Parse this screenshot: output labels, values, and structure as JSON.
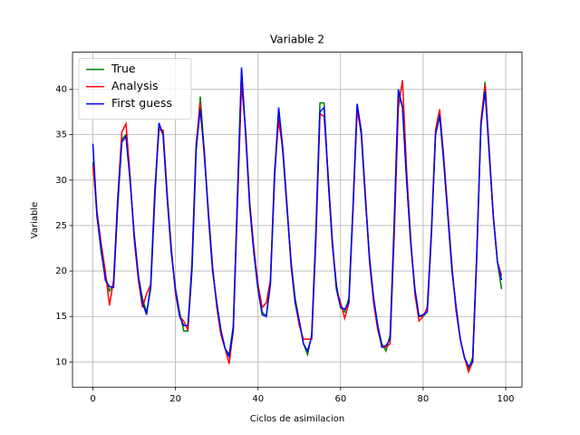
{
  "chart_data": {
    "type": "line",
    "title": "Variable 2",
    "xlabel": "Ciclos de asimilacion",
    "ylabel": "Variable",
    "x": [
      0,
      1,
      2,
      3,
      4,
      5,
      6,
      7,
      8,
      9,
      10,
      11,
      12,
      13,
      14,
      15,
      16,
      17,
      18,
      19,
      20,
      21,
      22,
      23,
      24,
      25,
      26,
      27,
      28,
      29,
      30,
      31,
      32,
      33,
      34,
      35,
      36,
      37,
      38,
      39,
      40,
      41,
      42,
      43,
      44,
      45,
      46,
      47,
      48,
      49,
      50,
      51,
      52,
      53,
      54,
      55,
      56,
      57,
      58,
      59,
      60,
      61,
      62,
      63,
      64,
      65,
      66,
      67,
      68,
      69,
      70,
      71,
      72,
      73,
      74,
      75,
      76,
      77,
      78,
      79,
      80,
      81,
      82,
      83,
      84,
      85,
      86,
      87,
      88,
      89,
      90,
      91,
      92,
      93,
      94,
      95,
      96,
      97,
      98,
      99
    ],
    "series": [
      {
        "name": "True",
        "color": "#008000",
        "values": [
          32,
          26,
          22,
          19.5,
          17.8,
          18.5,
          27,
          34.5,
          35,
          30,
          24,
          19.5,
          17,
          15.5,
          18,
          28,
          36,
          35,
          28,
          22,
          18,
          15.5,
          13.4,
          13.4,
          20,
          33,
          39.2,
          33,
          26,
          20,
          16.5,
          13.5,
          11.5,
          10.8,
          14,
          28,
          42,
          35,
          27,
          22,
          18,
          15.5,
          15,
          19,
          30,
          37.5,
          33,
          27,
          21,
          17,
          14.5,
          12,
          10.8,
          13,
          24,
          38.5,
          38.5,
          30,
          23,
          18.5,
          16,
          15.5,
          17,
          27,
          38,
          35,
          28,
          21.5,
          17,
          14,
          12,
          11.2,
          13,
          25,
          39.5,
          38,
          30,
          23,
          18,
          15,
          15,
          15.5,
          24,
          35,
          37,
          32,
          26,
          20,
          16,
          12.5,
          10.5,
          9.2,
          10.5,
          22,
          36,
          40.8,
          33,
          26,
          21,
          18
        ]
      },
      {
        "name": "Analysis",
        "color": "#ff0000",
        "values": [
          31.7,
          26.5,
          23,
          20,
          16.2,
          19,
          28,
          35.3,
          36.2,
          30.5,
          23.5,
          19,
          16,
          17.5,
          18.5,
          29,
          35.5,
          35.5,
          28.5,
          22.5,
          17.5,
          15,
          14.5,
          13.5,
          21,
          34,
          38.5,
          32.5,
          26.5,
          20.5,
          16,
          13,
          11.5,
          9.8,
          13.5,
          27,
          40.5,
          35.5,
          27.5,
          22.5,
          18.5,
          16,
          16.5,
          19,
          31,
          36.5,
          33.5,
          27.5,
          20.5,
          16.5,
          14,
          12.5,
          12.5,
          12.5,
          23,
          37.3,
          37,
          30.5,
          23.5,
          18,
          16.5,
          14.8,
          16.5,
          26.5,
          37.5,
          35.5,
          28.5,
          21,
          16.5,
          13.5,
          11.8,
          11.6,
          12,
          24,
          38,
          41,
          31,
          23.5,
          17.5,
          14.5,
          15,
          16,
          24.5,
          35.5,
          37.8,
          32.5,
          26.5,
          20.5,
          15.5,
          12.5,
          10.5,
          8.9,
          10,
          21.5,
          36.5,
          40.5,
          33.5,
          26,
          21,
          19.5
        ]
      },
      {
        "name": "First guess",
        "color": "#0000ff",
        "values": [
          34,
          26,
          22.5,
          19,
          18.3,
          18.2,
          27.5,
          34.2,
          34.8,
          30,
          24,
          19.5,
          16.5,
          15.2,
          18.5,
          28.5,
          36.3,
          35,
          28,
          22,
          18,
          15,
          14,
          14,
          20.5,
          33.5,
          37.8,
          33,
          26,
          20,
          16.5,
          13.5,
          11.5,
          10.6,
          13.5,
          28,
          42.4,
          35,
          27,
          22,
          18,
          15.2,
          15,
          18.5,
          30.5,
          38,
          33.5,
          27,
          21,
          16.5,
          14.5,
          12,
          11.2,
          12.8,
          24,
          37.5,
          38,
          30,
          23,
          18,
          16,
          15.8,
          16.5,
          27,
          38.4,
          35.5,
          28,
          21.5,
          17,
          14,
          11.6,
          11.8,
          12.5,
          25.5,
          40,
          38,
          30,
          23,
          18,
          15,
          15.2,
          15.5,
          24,
          35,
          37.2,
          32,
          26,
          20,
          16,
          12.5,
          10.5,
          9.5,
          10,
          22,
          36,
          39.8,
          33,
          26,
          21,
          19
        ]
      }
    ],
    "xlim": [
      -4.95,
      103.95
    ],
    "ylim": [
      7.225,
      44.075
    ],
    "xticks": [
      0,
      20,
      40,
      60,
      80,
      100
    ],
    "yticks": [
      10,
      15,
      20,
      25,
      30,
      35,
      40
    ],
    "grid": true,
    "legend": "upper-left"
  }
}
